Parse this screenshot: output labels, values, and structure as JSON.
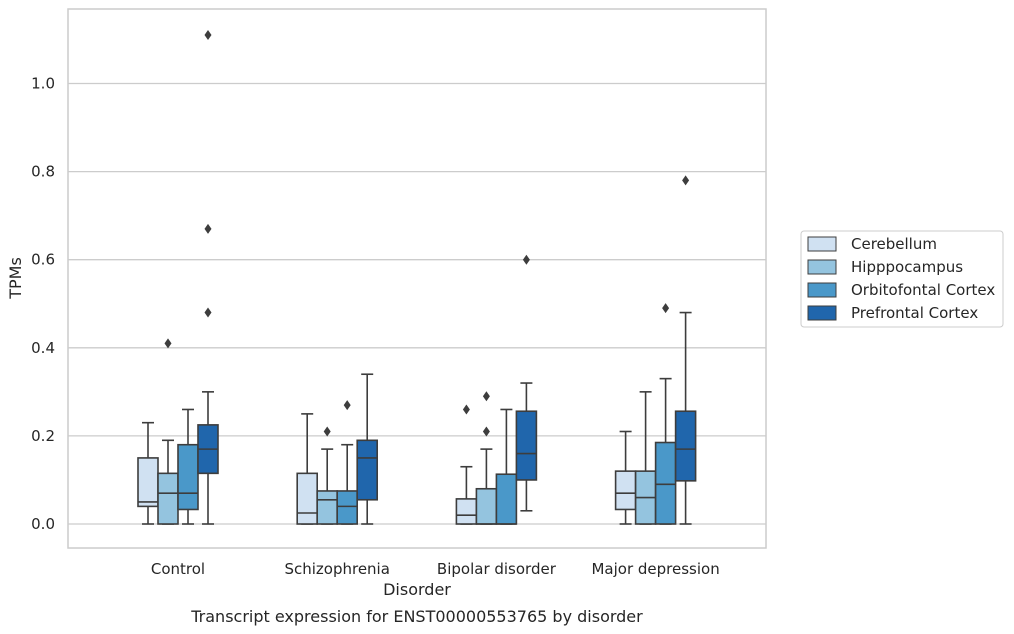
{
  "chart_data": {
    "type": "boxplot",
    "caption": "Transcript expression for ENST00000553765 by disorder",
    "xlabel": "Disorder",
    "ylabel": "TPMs",
    "ylim": [
      -0.05,
      1.17
    ],
    "yticks": [
      0.0,
      0.2,
      0.4,
      0.6,
      0.8,
      1.0
    ],
    "ytick_labels": [
      "0.0",
      "0.2",
      "0.4",
      "0.6",
      "0.8",
      "1.0"
    ],
    "grid": "horizontal",
    "legend_position": "right",
    "categories": [
      "Control",
      "Schizophrenia",
      "Bipolar disorder",
      "Major depression"
    ],
    "series": [
      {
        "name": "Cerebellum",
        "color": "#d0e1f2",
        "boxes": [
          {
            "whislo": 0.0,
            "q1": 0.04,
            "med": 0.05,
            "q3": 0.15,
            "whishi": 0.23,
            "fliers": []
          },
          {
            "whislo": 0.0,
            "q1": 0.0,
            "med": 0.025,
            "q3": 0.115,
            "whishi": 0.25,
            "fliers": []
          },
          {
            "whislo": 0.0,
            "q1": 0.0,
            "med": 0.02,
            "q3": 0.057,
            "whishi": 0.13,
            "fliers": [
              0.26
            ]
          },
          {
            "whislo": 0.0,
            "q1": 0.033,
            "med": 0.07,
            "q3": 0.12,
            "whishi": 0.21,
            "fliers": []
          }
        ]
      },
      {
        "name": "Hipppocampus",
        "color": "#94c4df",
        "boxes": [
          {
            "whislo": 0.0,
            "q1": 0.0,
            "med": 0.07,
            "q3": 0.115,
            "whishi": 0.19,
            "fliers": [
              0.41
            ]
          },
          {
            "whislo": 0.0,
            "q1": 0.0,
            "med": 0.055,
            "q3": 0.075,
            "whishi": 0.17,
            "fliers": [
              0.21
            ]
          },
          {
            "whislo": 0.0,
            "q1": 0.0,
            "med": 0.0,
            "q3": 0.08,
            "whishi": 0.17,
            "fliers": [
              0.21,
              0.29
            ]
          },
          {
            "whislo": 0.0,
            "q1": 0.0,
            "med": 0.06,
            "q3": 0.12,
            "whishi": 0.3,
            "fliers": []
          }
        ]
      },
      {
        "name": "Orbitofontal Cortex",
        "color": "#4a98c9",
        "boxes": [
          {
            "whislo": 0.0,
            "q1": 0.033,
            "med": 0.07,
            "q3": 0.18,
            "whishi": 0.26,
            "fliers": []
          },
          {
            "whislo": 0.0,
            "q1": 0.0,
            "med": 0.04,
            "q3": 0.075,
            "whishi": 0.18,
            "fliers": [
              0.27
            ]
          },
          {
            "whislo": 0.0,
            "q1": 0.0,
            "med": 0.0,
            "q3": 0.113,
            "whishi": 0.26,
            "fliers": []
          },
          {
            "whislo": 0.0,
            "q1": 0.0,
            "med": 0.09,
            "q3": 0.185,
            "whishi": 0.33,
            "fliers": [
              0.49
            ]
          }
        ]
      },
      {
        "name": "Prefrontal Cortex",
        "color": "#2066ac",
        "boxes": [
          {
            "whislo": 0.0,
            "q1": 0.115,
            "med": 0.17,
            "q3": 0.225,
            "whishi": 0.3,
            "fliers": [
              0.48,
              0.67,
              1.11
            ]
          },
          {
            "whislo": 0.0,
            "q1": 0.055,
            "med": 0.15,
            "q3": 0.19,
            "whishi": 0.34,
            "fliers": []
          },
          {
            "whislo": 0.03,
            "q1": 0.1,
            "med": 0.16,
            "q3": 0.256,
            "whishi": 0.32,
            "fliers": [
              0.6
            ]
          },
          {
            "whislo": 0.0,
            "q1": 0.098,
            "med": 0.17,
            "q3": 0.256,
            "whishi": 0.48,
            "fliers": [
              0.78
            ]
          }
        ]
      }
    ]
  }
}
